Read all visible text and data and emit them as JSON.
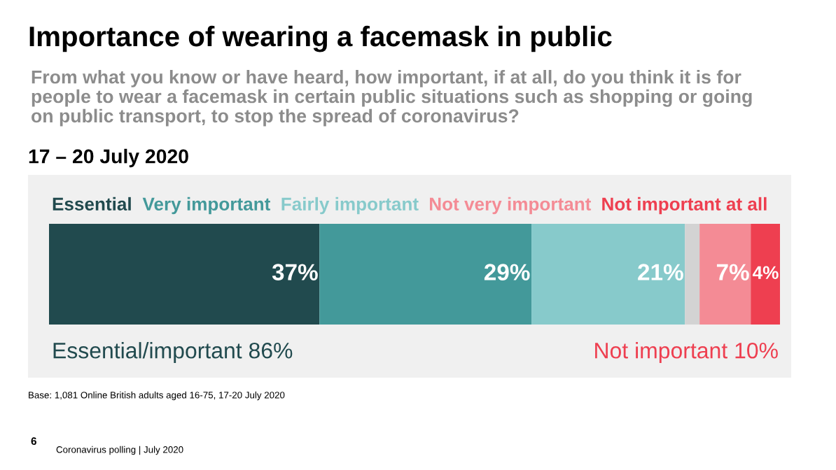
{
  "chart_data": {
    "type": "bar",
    "orientation": "horizontal",
    "stacked": true,
    "title": "Importance of wearing a facemask in public",
    "subtitle": "From what you know or have heard, how important, if at all, do you think it is for people to wear a facemask in certain public situations such as shopping or going on public transport, to stop the spread of coronavirus?",
    "categories": [
      null
    ],
    "series": [
      {
        "name": "Essential",
        "color": "#214a4e",
        "values": [
          37
        ],
        "value_labels": [
          "37%"
        ]
      },
      {
        "name": "Very important",
        "color": "#43999a",
        "values": [
          29
        ],
        "value_labels": [
          "29%"
        ]
      },
      {
        "name": "Fairly important",
        "color": "#87cacb",
        "values": [
          21
        ],
        "value_labels": [
          "21%"
        ]
      },
      {
        "color": "#d3d3d3",
        "values": [
          2
        ],
        "value_labels": [
          null
        ]
      },
      {
        "name": "Not very important",
        "color": "#f48b95",
        "values": [
          7
        ],
        "value_labels": [
          "7%"
        ]
      },
      {
        "name": "Not important at all",
        "color": "#ee3f50",
        "values": [
          4
        ],
        "value_labels": [
          "4%"
        ]
      }
    ],
    "annotations": [
      "17 – 20 July 2020",
      "Essential/important 86%",
      "Not important 10%",
      "Base: 1,081 Online British adults aged 16-75, 17-20 July 2020",
      "6",
      "Coronavirus polling | July 2020"
    ]
  }
}
